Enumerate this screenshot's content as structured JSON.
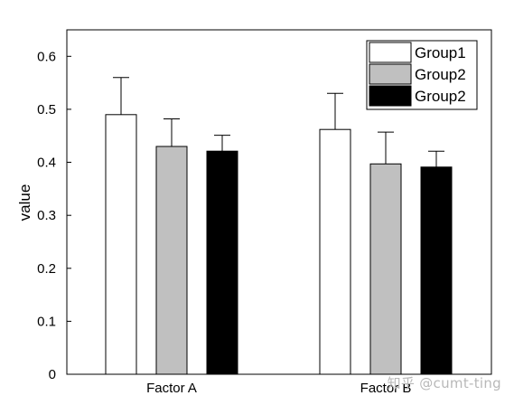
{
  "chart_data": {
    "type": "bar",
    "title": "",
    "xlabel": "",
    "ylabel": "value",
    "ylim": [
      0,
      0.65
    ],
    "yticks": [
      0,
      0.1,
      0.2,
      0.3,
      0.4,
      0.5,
      0.6
    ],
    "ytick_labels": [
      "0",
      "0.1",
      "0.2",
      "0.3",
      "0.4",
      "0.5",
      "0.6"
    ],
    "categories": [
      "Factor A",
      "Factor B"
    ],
    "grid": false,
    "legend_position": "top-right",
    "series": [
      {
        "name": "Group1",
        "color": "#ffffff",
        "values": [
          0.49,
          0.462
        ],
        "errors": [
          0.07,
          0.068
        ]
      },
      {
        "name": "Group2",
        "color": "#c0c0c0",
        "values": [
          0.43,
          0.397
        ],
        "errors": [
          0.052,
          0.06
        ]
      },
      {
        "name": "Group2",
        "color": "#000000",
        "values": [
          0.421,
          0.391
        ],
        "errors": [
          0.03,
          0.03
        ]
      }
    ]
  },
  "watermark": "知乎 @cumt-ting"
}
